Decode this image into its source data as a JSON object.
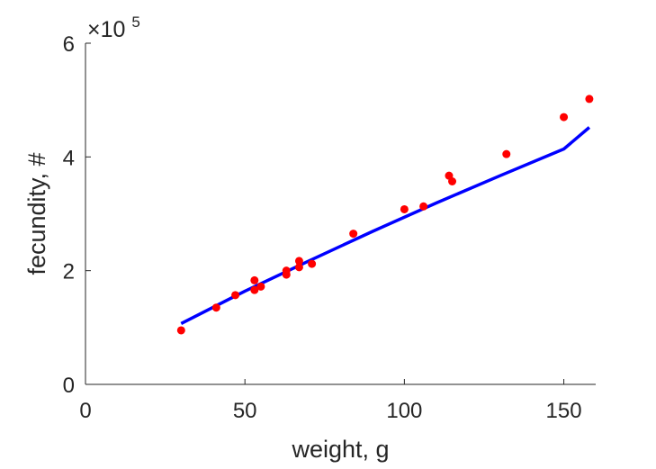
{
  "chart_data": {
    "type": "scatter",
    "xlabel": "weight, g",
    "ylabel": "fecundity, #",
    "xlim": [
      0,
      160
    ],
    "ylim": [
      0,
      6
    ],
    "y_multiplier": {
      "base": "×10",
      "exponent": "5"
    },
    "x_ticks": [
      0,
      50,
      100,
      150
    ],
    "x_tick_labels": [
      "0",
      "50",
      "100",
      "150"
    ],
    "y_ticks": [
      0,
      2,
      4,
      6
    ],
    "y_tick_labels": [
      "0",
      "2",
      "4",
      "6"
    ],
    "grid": false,
    "legend": "none",
    "colors": {
      "points": "#ff0000",
      "fit": "#0000ff",
      "axis": "#262626"
    },
    "series": [
      {
        "kind": "points",
        "x": [
          30,
          41,
          47,
          53,
          53,
          55,
          63,
          63,
          67,
          67,
          71,
          84,
          100,
          106,
          114,
          115,
          132,
          150,
          158
        ],
        "y": [
          0.95,
          1.35,
          1.57,
          1.66,
          1.83,
          1.72,
          1.93,
          2.0,
          2.06,
          2.17,
          2.12,
          2.65,
          3.08,
          3.13,
          3.67,
          3.57,
          4.05,
          4.7,
          5.02
        ]
      },
      {
        "kind": "fit",
        "x": [
          30,
          50,
          70,
          90,
          110,
          130,
          150,
          158
        ],
        "y": [
          1.07,
          1.64,
          2.17,
          2.69,
          3.19,
          3.67,
          4.14,
          4.52
        ]
      }
    ]
  }
}
